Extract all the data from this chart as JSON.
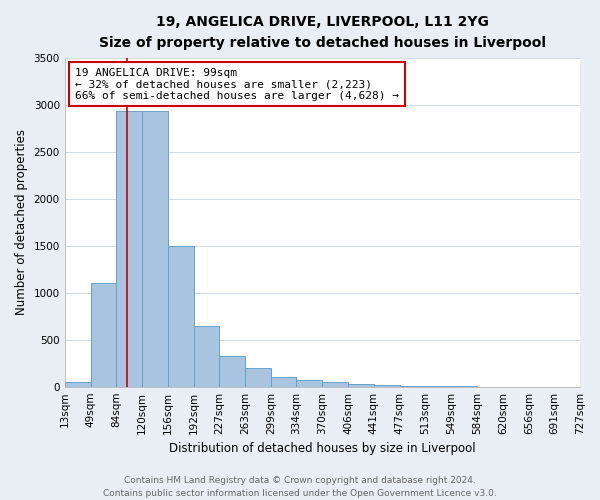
{
  "title_line1": "19, ANGELICA DRIVE, LIVERPOOL, L11 2YG",
  "title_line2": "Size of property relative to detached houses in Liverpool",
  "xlabel": "Distribution of detached houses by size in Liverpool",
  "ylabel": "Number of detached properties",
  "bin_edges": [
    13,
    49,
    84,
    120,
    156,
    192,
    227,
    263,
    299,
    334,
    370,
    406,
    441,
    477,
    513,
    549,
    584,
    620,
    656,
    691,
    727
  ],
  "bar_heights": [
    50,
    1100,
    2930,
    2930,
    1500,
    650,
    330,
    200,
    100,
    75,
    50,
    30,
    20,
    10,
    2,
    2,
    1,
    1,
    1,
    1
  ],
  "bar_color": "#a8c4e0",
  "bar_edgecolor": "#6aa0c8",
  "property_size": 99,
  "red_line_color": "#cc0000",
  "annotation_line1": "19 ANGELICA DRIVE: 99sqm",
  "annotation_line2": "← 32% of detached houses are smaller (2,223)",
  "annotation_line3": "66% of semi-detached houses are larger (4,628) →",
  "annotation_box_color": "#ffffff",
  "annotation_box_edgecolor": "#cc0000",
  "ylim": [
    0,
    3500
  ],
  "yticks": [
    0,
    500,
    1000,
    1500,
    2000,
    2500,
    3000,
    3500
  ],
  "footer_line1": "Contains HM Land Registry data © Crown copyright and database right 2024.",
  "footer_line2": "Contains public sector information licensed under the Open Government Licence v3.0.",
  "background_color": "#e8eef4",
  "plot_bg_color": "#ffffff",
  "title_fontsize": 10,
  "subtitle_fontsize": 9,
  "axis_label_fontsize": 8.5,
  "tick_fontsize": 7.5,
  "annotation_fontsize": 8,
  "footer_fontsize": 6.5
}
